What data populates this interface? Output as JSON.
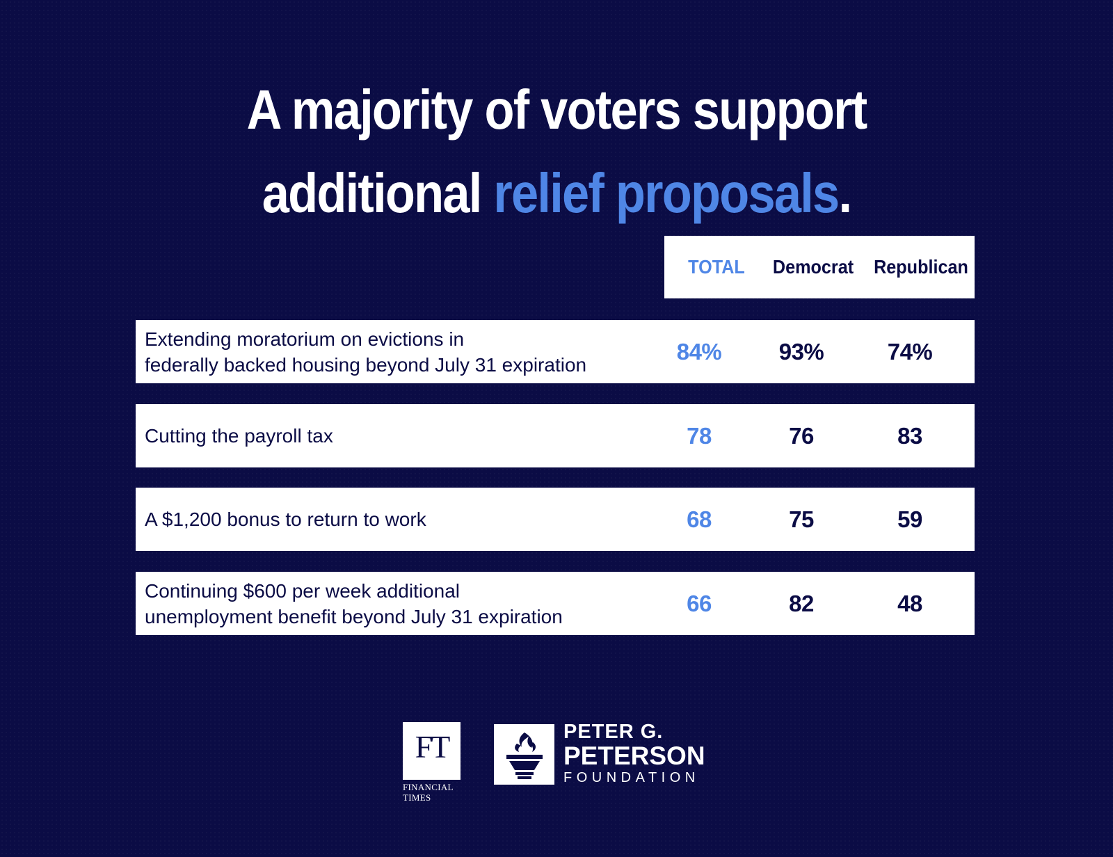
{
  "title": {
    "part1": "A majority of voters support",
    "part2": "additional ",
    "accent": "relief proposals",
    "period": "."
  },
  "colors": {
    "background": "#0b0c45",
    "accent": "#4f86e6",
    "row_background": "#ffffff"
  },
  "chart_data": {
    "type": "table",
    "columns": [
      "TOTAL",
      "Democrat",
      "Republican"
    ],
    "rows": [
      {
        "label": [
          "Extending moratorium on evictions in",
          "federally backed housing beyond July 31 expiration"
        ],
        "total": "84%",
        "democrat": "93%",
        "republican": "74%"
      },
      {
        "label": [
          "Cutting the payroll tax"
        ],
        "total": "78",
        "democrat": "76",
        "republican": "83"
      },
      {
        "label": [
          "A $1,200 bonus to return to work"
        ],
        "total": "68",
        "democrat": "75",
        "republican": "59"
      },
      {
        "label": [
          "Continuing $600 per week additional",
          "unemployment benefit beyond July 31 expiration"
        ],
        "total": "66",
        "democrat": "82",
        "republican": "48"
      }
    ]
  },
  "logos": {
    "ft": {
      "mark": "FT",
      "caption_line1": "FINANCIAL",
      "caption_line2": "TIMES",
      "icon": "ft-logo"
    },
    "pgpf": {
      "line1": "PETER G.",
      "line2": "PETERSON",
      "line3": "FOUNDATION",
      "icon": "torch-icon"
    }
  }
}
